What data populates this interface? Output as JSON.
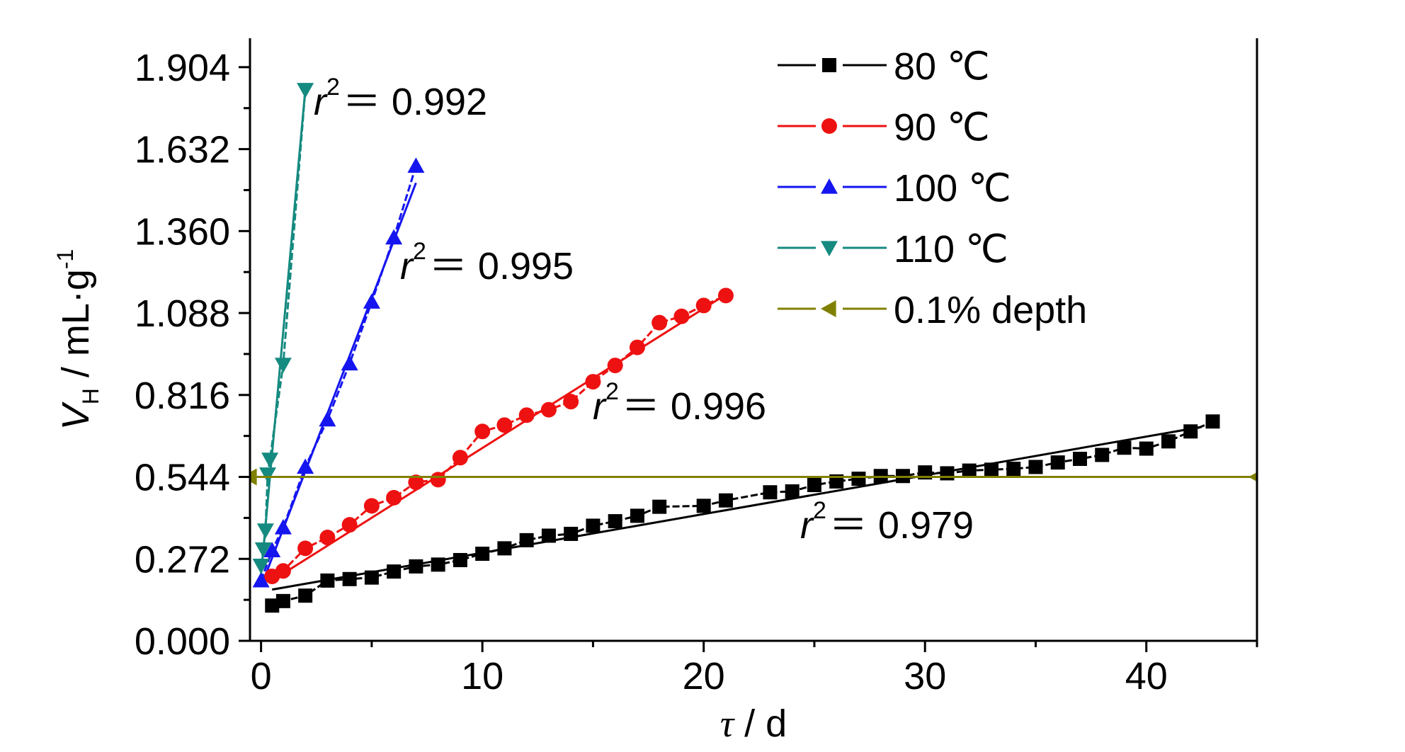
{
  "chart_data": {
    "type": "line",
    "xlabel": {
      "var": "τ",
      "unit": " / d"
    },
    "ylabel": {
      "var": "V",
      "sub": "H",
      "unit": " / mL·g",
      "sup": "-1"
    },
    "xlim": [
      -0.5,
      45
    ],
    "xticks": [
      0,
      10,
      20,
      30,
      40
    ],
    "ylim": [
      0,
      2.0
    ],
    "yticks": [
      {
        "value": 0,
        "label": "0.000"
      },
      0.272,
      0.544,
      0.816,
      1.088,
      {
        "value": 1.36,
        "label": "1.360"
      },
      1.632,
      1.904
    ],
    "legend": "top-right",
    "series": [
      {
        "name": "80 ℃",
        "color": "#000000",
        "marker": "square",
        "x": [
          0.5,
          1,
          2,
          3,
          4,
          5,
          6,
          7,
          8,
          9,
          10,
          11,
          12,
          13,
          14,
          15,
          16,
          17,
          18,
          20,
          21,
          23,
          24,
          25,
          26,
          27,
          28,
          29,
          30,
          31,
          32,
          33,
          34,
          35,
          36,
          37,
          38,
          39,
          40,
          41,
          42,
          43
        ],
        "values": [
          0.117,
          0.132,
          0.15,
          0.2,
          0.205,
          0.21,
          0.23,
          0.247,
          0.253,
          0.268,
          0.289,
          0.307,
          0.334,
          0.349,
          0.355,
          0.382,
          0.397,
          0.415,
          0.445,
          0.448,
          0.466,
          0.493,
          0.496,
          0.517,
          0.529,
          0.538,
          0.547,
          0.547,
          0.559,
          0.556,
          0.565,
          0.568,
          0.571,
          0.577,
          0.592,
          0.604,
          0.617,
          0.641,
          0.638,
          0.662,
          0.695,
          0.728
        ]
      },
      {
        "name": "90 ℃",
        "color": "#ee1111",
        "marker": "circle",
        "x": [
          0.5,
          1,
          2,
          3,
          4,
          5,
          6,
          7,
          8,
          9,
          10,
          11,
          12,
          13,
          14,
          15,
          16,
          17,
          18,
          19,
          20,
          21
        ],
        "values": [
          0.214,
          0.232,
          0.307,
          0.343,
          0.385,
          0.448,
          0.475,
          0.526,
          0.535,
          0.608,
          0.695,
          0.716,
          0.749,
          0.767,
          0.794,
          0.86,
          0.914,
          0.974,
          1.056,
          1.077,
          1.113,
          1.146
        ]
      },
      {
        "name": "100 ℃",
        "color": "#1515f0",
        "marker": "triangle-up",
        "x": [
          0,
          0.5,
          1,
          2,
          3,
          4,
          5,
          6,
          7
        ],
        "values": [
          0.2,
          0.3,
          0.376,
          0.577,
          0.734,
          0.92,
          1.125,
          1.338,
          1.576
        ]
      },
      {
        "name": "110 ℃",
        "color": "#158a80",
        "marker": "triangle-down",
        "x": [
          0,
          0.1,
          0.2,
          0.3,
          0.4,
          1,
          2
        ],
        "values": [
          0.25,
          0.304,
          0.367,
          0.553,
          0.602,
          0.917,
          1.829
        ]
      },
      {
        "name": "0.1% depth",
        "color": "#808000",
        "marker": "triangle-left",
        "x": [
          -0.5,
          45
        ],
        "values": [
          0.544,
          0.544
        ]
      }
    ],
    "fit_lines": [
      {
        "x": [
          0.5,
          42.5
        ],
        "values": [
          0.17,
          0.71
        ]
      },
      {
        "x": [
          0.5,
          20.8
        ],
        "values": [
          0.2,
          1.14
        ]
      },
      {
        "x": [
          0,
          7
        ],
        "values": [
          0.18,
          1.52
        ]
      },
      {
        "x": [
          0,
          2
        ],
        "values": [
          0.22,
          1.83
        ]
      }
    ],
    "annotations": [
      {
        "base": "r",
        "sup": "2",
        "text": "＝ 0.992"
      },
      {
        "base": "r",
        "sup": "2",
        "text": "＝ 0.995"
      },
      {
        "base": "r",
        "sup": "2",
        "text": "＝ 0.996"
      },
      {
        "base": "r",
        "sup": "2",
        "text": "＝ 0.979"
      }
    ]
  }
}
